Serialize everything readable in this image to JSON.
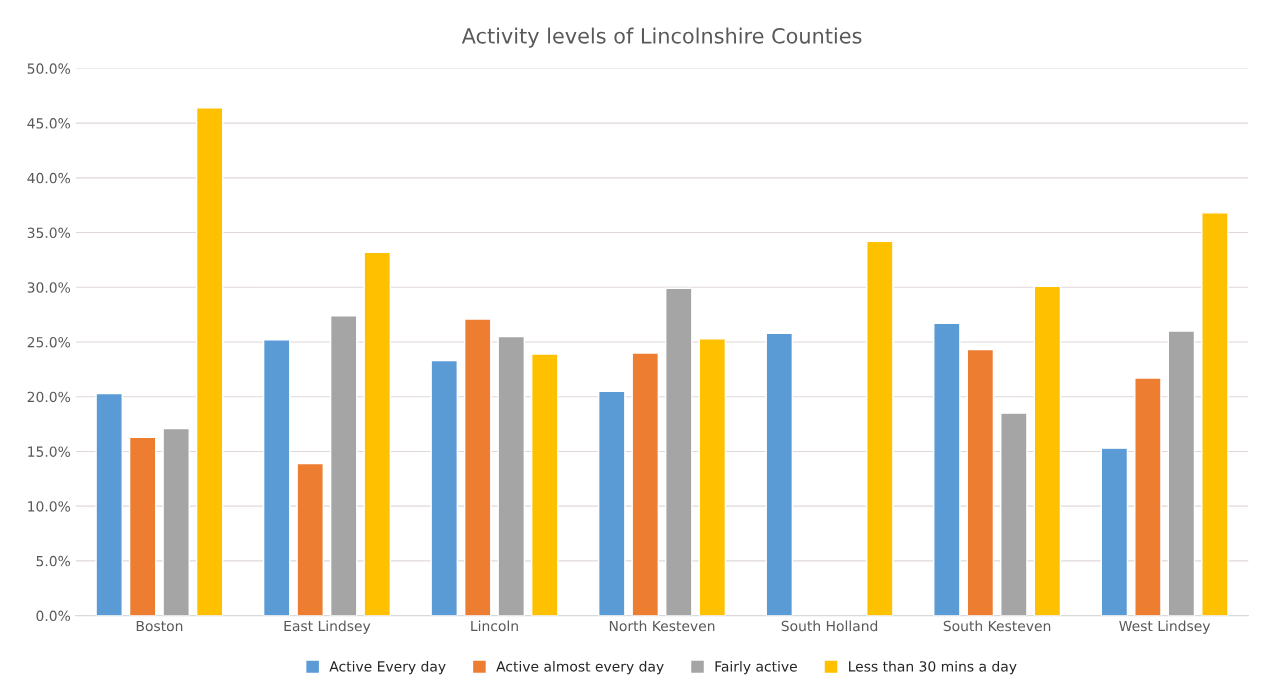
{
  "chart_data": {
    "type": "bar",
    "title": "Activity levels of Lincolnshire Counties",
    "categories": [
      "Boston",
      "East Lindsey",
      "Lincoln",
      "North Kesteven",
      "South Holland",
      "South Kesteven",
      "West Lindsey"
    ],
    "series": [
      {
        "name": "Active Every day",
        "color": "#5b9bd5",
        "values": [
          20.3,
          25.2,
          23.3,
          20.5,
          25.8,
          26.7,
          15.3
        ]
      },
      {
        "name": "Active almost every day",
        "color": "#ed7d31",
        "values": [
          16.3,
          13.9,
          27.1,
          24.0,
          null,
          24.3,
          21.7
        ]
      },
      {
        "name": "Fairly active",
        "color": "#a5a5a5",
        "values": [
          17.1,
          27.4,
          25.5,
          29.9,
          null,
          18.5,
          26.0
        ]
      },
      {
        "name": "Less than 30 mins a day",
        "color": "#ffc000",
        "values": [
          46.4,
          33.2,
          23.9,
          25.3,
          34.2,
          30.1,
          36.8
        ]
      }
    ],
    "ylim": [
      0,
      50
    ],
    "yticks": [
      {
        "value": 0,
        "label": "0.0%"
      },
      {
        "value": 5,
        "label": "5.0%"
      },
      {
        "value": 10,
        "label": "10.0%"
      },
      {
        "value": 15,
        "label": "15.0%"
      },
      {
        "value": 20,
        "label": "20.0%"
      },
      {
        "value": 25,
        "label": "25.0%"
      },
      {
        "value": 30,
        "label": "30.0%"
      },
      {
        "value": 35,
        "label": "35.0%"
      },
      {
        "value": 40,
        "label": "40.0%"
      },
      {
        "value": 45,
        "label": "45.0%"
      },
      {
        "value": 50,
        "label": "50.0%"
      }
    ],
    "grid": "y",
    "legend": "bottom"
  }
}
